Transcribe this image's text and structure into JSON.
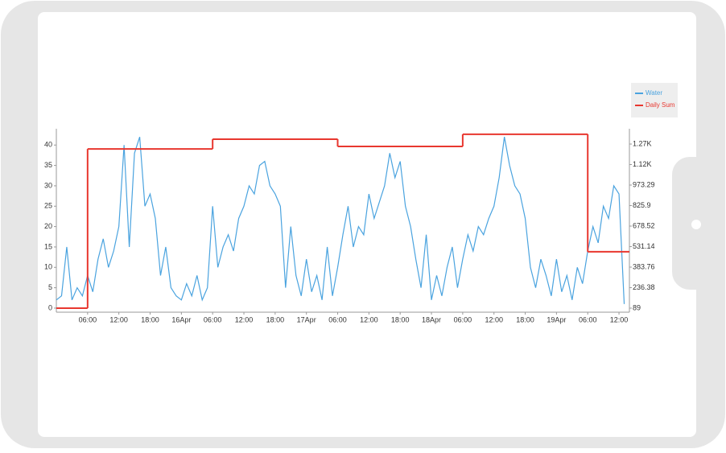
{
  "chart_data": {
    "type": "line",
    "xlim": [
      0,
      110
    ],
    "xticks": [
      {
        "value": 6,
        "label": "06:00"
      },
      {
        "value": 12,
        "label": "12:00"
      },
      {
        "value": 18,
        "label": "18:00"
      },
      {
        "value": 24,
        "label": "16Apr"
      },
      {
        "value": 30,
        "label": "06:00"
      },
      {
        "value": 36,
        "label": "12:00"
      },
      {
        "value": 42,
        "label": "18:00"
      },
      {
        "value": 48,
        "label": "17Apr"
      },
      {
        "value": 54,
        "label": "06:00"
      },
      {
        "value": 60,
        "label": "12:00"
      },
      {
        "value": 66,
        "label": "18:00"
      },
      {
        "value": 72,
        "label": "18Apr"
      },
      {
        "value": 78,
        "label": "06:00"
      },
      {
        "value": 84,
        "label": "12:00"
      },
      {
        "value": 90,
        "label": "18:00"
      },
      {
        "value": 96,
        "label": "19Apr"
      },
      {
        "value": 102,
        "label": "06:00"
      },
      {
        "value": 108,
        "label": "12:00"
      }
    ],
    "ylim": [
      -1,
      44
    ],
    "yticks": [
      0,
      5,
      10,
      15,
      20,
      25,
      30,
      35,
      40
    ],
    "y2lim": [
      60,
      1378
    ],
    "y2ticks": [
      89,
      236.38,
      383.76,
      531.14,
      678.52,
      825.9,
      973.29,
      {
        "value": 1120.66,
        "label": "1.12K"
      },
      {
        "value": 1268.04,
        "label": "1.27K"
      }
    ],
    "legend": "top-right",
    "series": [
      {
        "name": "Water",
        "color": "#4aa3df",
        "x": [
          0,
          1,
          2,
          3,
          4,
          5,
          6,
          7,
          8,
          9,
          10,
          11,
          12,
          13,
          14,
          15,
          16,
          17,
          18,
          19,
          20,
          21,
          22,
          23,
          24,
          25,
          26,
          27,
          28,
          29,
          30,
          31,
          32,
          33,
          34,
          35,
          36,
          37,
          38,
          39,
          40,
          41,
          42,
          43,
          44,
          45,
          46,
          47,
          48,
          49,
          50,
          51,
          52,
          53,
          54,
          55,
          56,
          57,
          58,
          59,
          60,
          61,
          62,
          63,
          64,
          65,
          66,
          67,
          68,
          69,
          70,
          71,
          72,
          73,
          74,
          75,
          76,
          77,
          78,
          79,
          80,
          81,
          82,
          83,
          84,
          85,
          86,
          87,
          88,
          89,
          90,
          91,
          92,
          93,
          94,
          95,
          96,
          97,
          98,
          99,
          100,
          101,
          102,
          103,
          104,
          105,
          106,
          107,
          108,
          109
        ],
        "values": [
          2,
          3,
          15,
          2,
          5,
          3,
          8,
          4,
          12,
          17,
          10,
          14,
          20,
          40,
          15,
          38,
          42,
          25,
          28,
          22,
          8,
          15,
          5,
          3,
          2,
          6,
          3,
          8,
          2,
          5,
          25,
          10,
          15,
          18,
          14,
          22,
          25,
          30,
          28,
          35,
          36,
          30,
          28,
          25,
          5,
          20,
          8,
          3,
          12,
          4,
          8,
          2,
          15,
          3,
          10,
          18,
          25,
          15,
          20,
          18,
          28,
          22,
          26,
          30,
          38,
          32,
          36,
          25,
          20,
          12,
          5,
          18,
          2,
          8,
          3,
          10,
          15,
          5,
          12,
          18,
          14,
          20,
          18,
          22,
          25,
          32,
          42,
          35,
          30,
          28,
          22,
          10,
          5,
          12,
          8,
          3,
          12,
          4,
          8,
          2,
          10,
          6,
          14,
          20,
          16,
          25,
          22,
          30,
          28,
          1
        ]
      },
      {
        "name": "Daily Sum",
        "color": "#e8372f",
        "axis": "y2",
        "step": "post",
        "x": [
          0,
          6,
          30,
          54,
          78,
          102
        ],
        "values": [
          89,
          1233,
          1303,
          1251,
          1338,
          494
        ]
      }
    ]
  }
}
